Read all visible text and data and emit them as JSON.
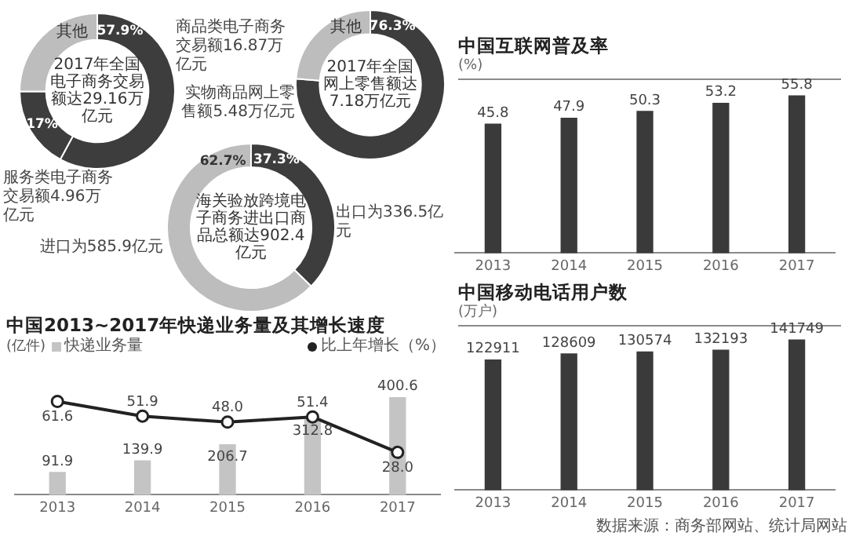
{
  "chart_data": [
    {
      "type": "donut",
      "title": "2017年全国电子商务交易额达29.16万亿元",
      "categories": [
        null,
        null,
        "其他"
      ],
      "values": [
        57.9,
        17,
        25.1
      ],
      "colors": [
        "#3d3d3d",
        "#3d3d3d",
        "#bdbdbd"
      ],
      "value_labels": [
        "57.9%",
        "17%",
        null
      ],
      "annotations": [
        "商品类电子商务交易额16.87万亿元",
        "服务类电子商务交易额4.96万亿元"
      ]
    },
    {
      "type": "donut",
      "title": "2017年全国网上零售额达7.18万亿元",
      "categories": [
        null,
        "其他"
      ],
      "values": [
        76.3,
        23.7
      ],
      "colors": [
        "#3d3d3d",
        "#bdbdbd"
      ],
      "value_labels": [
        "76.3%",
        null
      ],
      "annotations": [
        "实物商品网上零售额5.48万亿元"
      ]
    },
    {
      "type": "donut",
      "title": "海关验放跨境电子商务进出口商品总额达902.4亿元",
      "categories": [
        null,
        null
      ],
      "values": [
        37.3,
        62.7
      ],
      "colors": [
        "#3d3d3d",
        "#bdbdbd"
      ],
      "value_labels": [
        "37.3%",
        "62.7%"
      ],
      "annotations": [
        "出口为336.5亿元",
        "进口为585.9亿元"
      ]
    },
    {
      "type": "bar",
      "title": "中国2013~2017年快递业务量及其增长速度",
      "ylabel": "(亿件)",
      "categories": [
        "2013",
        "2014",
        "2015",
        "2016",
        "2017"
      ],
      "series": [
        {
          "name": "快递业务量",
          "type": "bar",
          "color": "#c4c4c4",
          "values": [
            91.9,
            139.9,
            206.7,
            312.8,
            400.6
          ],
          "value_labels": [
            "91.9",
            "139.9",
            "206.7",
            "312.8",
            "400.6"
          ]
        },
        {
          "name": "比上年增长（%）",
          "type": "line",
          "axis": "y2",
          "color": "#222222",
          "values": [
            61.6,
            51.9,
            48.0,
            51.4,
            28.0
          ],
          "value_labels": [
            "61.6",
            "51.9",
            "48.0",
            "51.4",
            "28.0"
          ]
        }
      ],
      "marker": "circle",
      "legend": "top",
      "tick_labels": "x"
    },
    {
      "type": "bar",
      "title": "中国互联网普及率",
      "ylabel": "(%)",
      "categories": [
        "2013",
        "2014",
        "2015",
        "2016",
        "2017"
      ],
      "values": [
        45.8,
        47.9,
        50.3,
        53.2,
        55.8
      ],
      "color": "#3a3a3a",
      "ylim": [
        0,
        62
      ],
      "data_labels": true,
      "tick_labels": "x"
    },
    {
      "type": "bar",
      "title": "中国移动电话用户数",
      "ylabel": "(万户)",
      "categories": [
        "2013",
        "2014",
        "2015",
        "2016",
        "2017"
      ],
      "values": [
        122911,
        128609,
        130574,
        132193,
        141749
      ],
      "color": "#3a3a3a",
      "ylim": [
        0,
        156000
      ],
      "data_labels": true,
      "tick_labels": "x",
      "annotations": [
        "数据来源：商务部网站、统计局网站"
      ]
    }
  ]
}
